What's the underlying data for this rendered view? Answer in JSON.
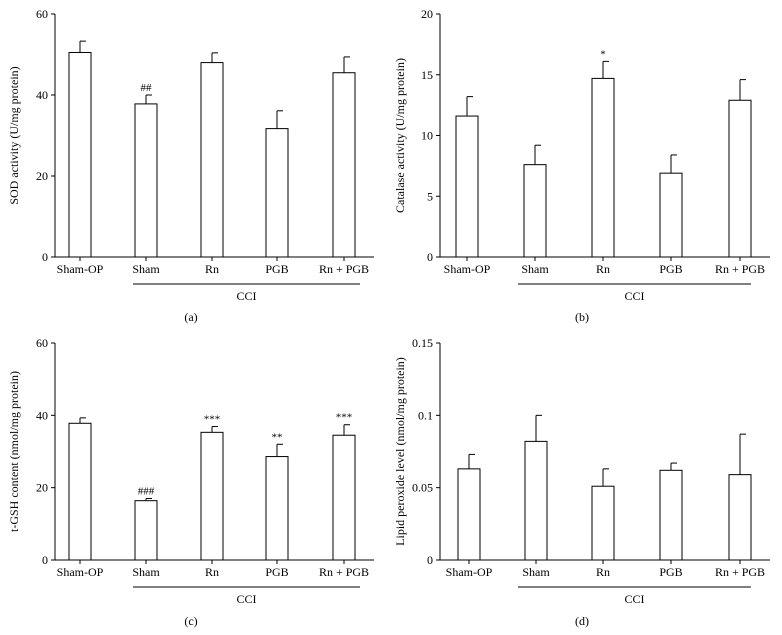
{
  "chart_data": [
    {
      "type": "bar",
      "panel_label": "(a)",
      "title": "",
      "ylabel": "SOD activity (U/mg protein)",
      "xlabel": "",
      "ylim": [
        0,
        60
      ],
      "yticks": [
        "0",
        "20",
        "40",
        "60"
      ],
      "categories": [
        "Sham-OP",
        "Sham",
        "Rn",
        "PGB",
        "Rn + PGB"
      ],
      "values": [
        50.5,
        37.8,
        48,
        31.7,
        45.5
      ],
      "errors": [
        2.8,
        2.2,
        2.4,
        4.4,
        3.9
      ],
      "annotations": [
        "",
        "##",
        "",
        "",
        ""
      ],
      "group_label": "CCI",
      "grid": false
    },
    {
      "type": "bar",
      "panel_label": "(b)",
      "title": "",
      "ylabel": "Catalase activity (U/mg protein)",
      "xlabel": "",
      "ylim": [
        0,
        20
      ],
      "yticks": [
        "0",
        "5",
        "10",
        "15",
        "20"
      ],
      "categories": [
        "Sham-OP",
        "Sham",
        "Rn",
        "PGB",
        "Rn + PGB"
      ],
      "values": [
        11.6,
        7.6,
        14.7,
        6.9,
        12.9
      ],
      "errors": [
        1.6,
        1.6,
        1.4,
        1.5,
        1.7
      ],
      "annotations": [
        "",
        "",
        "*",
        "",
        ""
      ],
      "group_label": "CCI",
      "grid": false
    },
    {
      "type": "bar",
      "panel_label": "(c)",
      "title": "",
      "ylabel": "t-GSH content (nmol/mg protein)",
      "xlabel": "",
      "ylim": [
        0,
        60
      ],
      "yticks": [
        "0",
        "20",
        "40",
        "60"
      ],
      "categories": [
        "Sham-OP",
        "Sham",
        "Rn",
        "PGB",
        "Rn + PGB"
      ],
      "values": [
        37.8,
        16.4,
        35.3,
        28.6,
        34.5
      ],
      "errors": [
        1.5,
        0.6,
        1.6,
        3.4,
        2.9
      ],
      "annotations": [
        "",
        "###",
        "***",
        "**",
        "***"
      ],
      "group_label": "CCI",
      "grid": false
    },
    {
      "type": "bar",
      "panel_label": "(d)",
      "title": "",
      "ylabel": "Lipid peroxide level (nmol/mg protein)",
      "xlabel": "",
      "ylim": [
        0,
        0.15
      ],
      "yticks": [
        "0",
        "0.05",
        "0.1",
        "0.15"
      ],
      "categories": [
        "Sham-OP",
        "Sham",
        "Rn",
        "PGB",
        "Rn + PGB"
      ],
      "values": [
        0.063,
        0.082,
        0.051,
        0.062,
        0.059
      ],
      "errors": [
        0.01,
        0.018,
        0.012,
        0.005,
        0.028
      ],
      "annotations": [
        "",
        "",
        "",
        "",
        ""
      ],
      "group_label": "CCI",
      "grid": false
    }
  ]
}
